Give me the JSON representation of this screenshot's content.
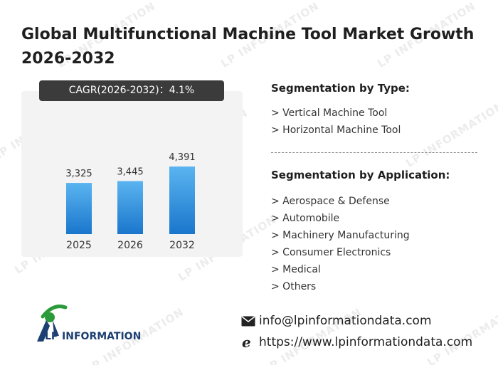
{
  "header": {
    "title": "Global Multifunctional Machine Tool Market Growth 2026-2032"
  },
  "cagr_label": "CAGR(2026-2032)：4.1%",
  "chart_data": {
    "type": "bar",
    "categories": [
      "2025",
      "2026",
      "2032"
    ],
    "values": [
      3325,
      3445,
      4391
    ],
    "value_labels": [
      "3,325",
      "3,445",
      "4,391"
    ],
    "ylim": [
      0,
      5000
    ],
    "grid": false,
    "legend": "none",
    "colors": {
      "bar_top": "#5ab4f0",
      "bar_bottom": "#1a76cc"
    }
  },
  "segmentation": {
    "type_heading": "Segmentation by Type:",
    "types": [
      "> Vertical Machine Tool",
      "> Horizontal Machine Tool"
    ],
    "application_heading": "Segmentation by Application:",
    "applications": [
      "> Aerospace & Defense",
      "> Automobile",
      "> Machinery Manufacturing",
      "> Consumer Electronics",
      "> Medical",
      "> Others"
    ]
  },
  "brand": {
    "name": "LP INFORMATION",
    "colors": {
      "primary": "#1d3f72",
      "accent": "#2a9a3a"
    }
  },
  "watermark": {
    "text": "LP INFORMATION"
  },
  "contact": {
    "email_icon": "envelope-icon",
    "email": "info@lpinformationdata.com",
    "web_icon": "browser-e-icon",
    "website": "https://www.lpinformationdata.com"
  }
}
